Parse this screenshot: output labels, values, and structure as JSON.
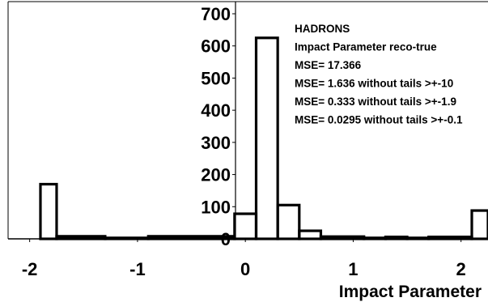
{
  "chart_data": {
    "type": "bar",
    "histogram": true,
    "title": "",
    "xlabel": "Impact Parameter",
    "ylabel": "",
    "xlim": [
      -2.2,
      2.25
    ],
    "ylim": [
      0,
      700
    ],
    "grid": false,
    "xticks": [
      {
        "value": -2,
        "label": "-2"
      },
      {
        "value": -1,
        "label": "-1"
      },
      {
        "value": 0,
        "label": "0"
      },
      {
        "value": 1,
        "label": "1"
      },
      {
        "value": 2,
        "label": "2"
      }
    ],
    "yticks": [
      {
        "value": 0,
        "label": "0"
      },
      {
        "value": 100,
        "label": "100"
      },
      {
        "value": 200,
        "label": "200"
      },
      {
        "value": 300,
        "label": "300"
      },
      {
        "value": 400,
        "label": "400"
      },
      {
        "value": 500,
        "label": "500"
      },
      {
        "value": 600,
        "label": "600"
      },
      {
        "value": 700,
        "label": "700"
      }
    ],
    "bins": [
      {
        "x0": -1.9,
        "x1": -1.75,
        "value": 170
      },
      {
        "x0": -1.75,
        "x1": -1.3,
        "value": 8
      },
      {
        "x0": -1.3,
        "x1": -0.9,
        "value": 3
      },
      {
        "x0": -0.9,
        "x1": -0.1,
        "value": 8
      },
      {
        "x0": -0.1,
        "x1": 0.1,
        "value": 78
      },
      {
        "x0": 0.1,
        "x1": 0.3,
        "value": 625
      },
      {
        "x0": 0.3,
        "x1": 0.5,
        "value": 105
      },
      {
        "x0": 0.5,
        "x1": 0.7,
        "value": 25
      },
      {
        "x0": 0.7,
        "x1": 1.1,
        "value": 7
      },
      {
        "x0": 1.1,
        "x1": 1.3,
        "value": 3
      },
      {
        "x0": 1.3,
        "x1": 1.5,
        "value": 6
      },
      {
        "x0": 1.5,
        "x1": 1.7,
        "value": 3
      },
      {
        "x0": 1.7,
        "x1": 2.1,
        "value": 6
      },
      {
        "x0": 2.1,
        "x1": 2.25,
        "value": 88
      }
    ],
    "legend": {
      "placement": "top-right",
      "lines": [
        "HADRONS",
        "Impact Parameter reco-true",
        "MSE= 17.366",
        "MSE= 1.636 without tails >+-10",
        "MSE= 0.333 without tails >+-1.9",
        "MSE= 0.0295 without tails >+-0.1"
      ]
    }
  }
}
